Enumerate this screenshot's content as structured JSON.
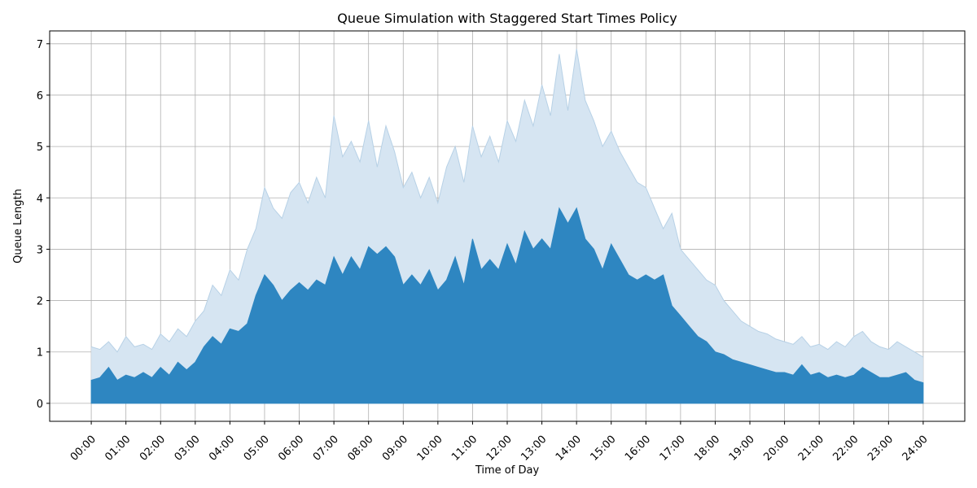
{
  "chart_data": {
    "type": "area",
    "title": "Queue Simulation with Staggered Start Times Policy",
    "xlabel": "Time of Day",
    "ylabel": "Queue Length",
    "xlim": [
      -1.2,
      25.2
    ],
    "ylim": [
      -0.35,
      7.25
    ],
    "x_ticks": [
      0,
      1,
      2,
      3,
      4,
      5,
      6,
      7,
      8,
      9,
      10,
      11,
      12,
      13,
      14,
      15,
      16,
      17,
      18,
      19,
      20,
      21,
      22,
      23,
      24
    ],
    "x_tick_labels": [
      "00:00",
      "01:00",
      "02:00",
      "03:00",
      "04:00",
      "05:00",
      "06:00",
      "07:00",
      "08:00",
      "09:00",
      "10:00",
      "11:00",
      "12:00",
      "13:00",
      "14:00",
      "15:00",
      "16:00",
      "17:00",
      "18:00",
      "19:00",
      "20:00",
      "21:00",
      "22:00",
      "23:00",
      "24:00"
    ],
    "y_ticks": [
      0,
      1,
      2,
      3,
      4,
      5,
      6,
      7
    ],
    "y_tick_labels": [
      "0",
      "1",
      "2",
      "3",
      "4",
      "5",
      "6",
      "7"
    ],
    "grid": true,
    "colors": {
      "upper_band": "#d6e5f2",
      "upper_line": "#b7d1e6",
      "mean": "#2e86c1"
    },
    "series": [
      {
        "role": "upper-band",
        "x": [
          0,
          0.25,
          0.5,
          0.75,
          1,
          1.25,
          1.5,
          1.75,
          2,
          2.25,
          2.5,
          2.75,
          3,
          3.25,
          3.5,
          3.75,
          4,
          4.25,
          4.5,
          4.75,
          5,
          5.25,
          5.5,
          5.75,
          6,
          6.25,
          6.5,
          6.75,
          7,
          7.25,
          7.5,
          7.75,
          8,
          8.25,
          8.5,
          8.75,
          9,
          9.25,
          9.5,
          9.75,
          10,
          10.25,
          10.5,
          10.75,
          11,
          11.25,
          11.5,
          11.75,
          12,
          12.25,
          12.5,
          12.75,
          13,
          13.25,
          13.5,
          13.75,
          14,
          14.25,
          14.5,
          14.75,
          15,
          15.25,
          15.5,
          15.75,
          16,
          16.25,
          16.5,
          16.75,
          17,
          17.25,
          17.5,
          17.75,
          18,
          18.25,
          18.5,
          18.75,
          19,
          19.25,
          19.5,
          19.75,
          20,
          20.25,
          20.5,
          20.75,
          21,
          21.25,
          21.5,
          21.75,
          22,
          22.25,
          22.5,
          22.75,
          23,
          23.25,
          23.5,
          23.75,
          24
        ],
        "values": [
          1.1,
          1.05,
          1.2,
          1.0,
          1.3,
          1.1,
          1.15,
          1.05,
          1.35,
          1.2,
          1.45,
          1.3,
          1.6,
          1.8,
          2.3,
          2.1,
          2.6,
          2.4,
          3.0,
          3.4,
          4.2,
          3.8,
          3.6,
          4.1,
          4.3,
          3.9,
          4.4,
          4.0,
          5.6,
          4.8,
          5.1,
          4.7,
          5.5,
          4.6,
          5.4,
          4.9,
          4.2,
          4.5,
          4.0,
          4.4,
          3.9,
          4.6,
          5.0,
          4.3,
          5.4,
          4.8,
          5.2,
          4.7,
          5.5,
          5.1,
          5.9,
          5.4,
          6.2,
          5.6,
          6.8,
          5.7,
          6.9,
          5.9,
          5.5,
          5.0,
          5.3,
          4.9,
          4.6,
          4.3,
          4.2,
          3.8,
          3.4,
          3.7,
          3.0,
          2.8,
          2.6,
          2.4,
          2.3,
          2.0,
          1.8,
          1.6,
          1.5,
          1.4,
          1.35,
          1.25,
          1.2,
          1.15,
          1.3,
          1.1,
          1.15,
          1.05,
          1.2,
          1.1,
          1.3,
          1.4,
          1.2,
          1.1,
          1.05,
          1.2,
          1.1,
          1.0,
          0.9
        ]
      },
      {
        "role": "mean",
        "x": [
          0,
          0.25,
          0.5,
          0.75,
          1,
          1.25,
          1.5,
          1.75,
          2,
          2.25,
          2.5,
          2.75,
          3,
          3.25,
          3.5,
          3.75,
          4,
          4.25,
          4.5,
          4.75,
          5,
          5.25,
          5.5,
          5.75,
          6,
          6.25,
          6.5,
          6.75,
          7,
          7.25,
          7.5,
          7.75,
          8,
          8.25,
          8.5,
          8.75,
          9,
          9.25,
          9.5,
          9.75,
          10,
          10.25,
          10.5,
          10.75,
          11,
          11.25,
          11.5,
          11.75,
          12,
          12.25,
          12.5,
          12.75,
          13,
          13.25,
          13.5,
          13.75,
          14,
          14.25,
          14.5,
          14.75,
          15,
          15.25,
          15.5,
          15.75,
          16,
          16.25,
          16.5,
          16.75,
          17,
          17.25,
          17.5,
          17.75,
          18,
          18.25,
          18.5,
          18.75,
          19,
          19.25,
          19.5,
          19.75,
          20,
          20.25,
          20.5,
          20.75,
          21,
          21.25,
          21.5,
          21.75,
          22,
          22.25,
          22.5,
          22.75,
          23,
          23.25,
          23.5,
          23.75,
          24
        ],
        "values": [
          0.45,
          0.5,
          0.7,
          0.45,
          0.55,
          0.5,
          0.6,
          0.5,
          0.7,
          0.55,
          0.8,
          0.65,
          0.8,
          1.1,
          1.3,
          1.15,
          1.45,
          1.4,
          1.55,
          2.1,
          2.5,
          2.3,
          2.0,
          2.2,
          2.35,
          2.2,
          2.4,
          2.3,
          2.85,
          2.5,
          2.85,
          2.6,
          3.05,
          2.9,
          3.05,
          2.85,
          2.3,
          2.5,
          2.3,
          2.6,
          2.2,
          2.4,
          2.85,
          2.3,
          3.2,
          2.6,
          2.8,
          2.6,
          3.1,
          2.7,
          3.35,
          3.0,
          3.2,
          3.0,
          3.8,
          3.5,
          3.8,
          3.2,
          3.0,
          2.6,
          3.1,
          2.8,
          2.5,
          2.4,
          2.5,
          2.4,
          2.5,
          1.9,
          1.7,
          1.5,
          1.3,
          1.2,
          1.0,
          0.95,
          0.85,
          0.8,
          0.75,
          0.7,
          0.65,
          0.6,
          0.6,
          0.55,
          0.75,
          0.55,
          0.6,
          0.5,
          0.55,
          0.5,
          0.55,
          0.7,
          0.6,
          0.5,
          0.5,
          0.55,
          0.6,
          0.45,
          0.4
        ]
      }
    ]
  }
}
